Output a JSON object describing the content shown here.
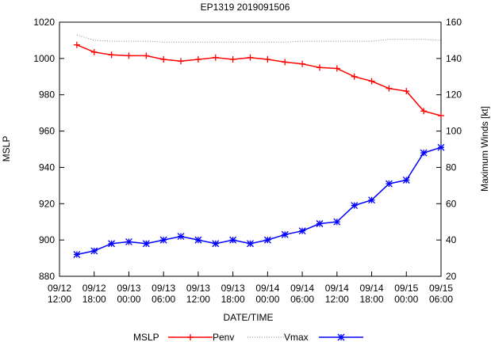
{
  "chart_data": {
    "type": "line",
    "title": "EP1319 2019091506",
    "xlabel": "DATE/TIME",
    "ylabel": "MSLP",
    "y2label": "Maximum Winds [kt]",
    "x_ticks": [
      [
        "09/12",
        "12:00"
      ],
      [
        "09/12",
        "18:00"
      ],
      [
        "09/13",
        "00:00"
      ],
      [
        "09/13",
        "06:00"
      ],
      [
        "09/13",
        "12:00"
      ],
      [
        "09/13",
        "18:00"
      ],
      [
        "09/14",
        "00:00"
      ],
      [
        "09/14",
        "06:00"
      ],
      [
        "09/14",
        "12:00"
      ],
      [
        "09/14",
        "18:00"
      ],
      [
        "09/15",
        "00:00"
      ],
      [
        "09/15",
        "06:00"
      ]
    ],
    "x_range_hours": [
      0,
      66
    ],
    "ylim": [
      880,
      1020
    ],
    "yticks": [
      880,
      900,
      920,
      940,
      960,
      980,
      1000,
      1020
    ],
    "y2lim": [
      20,
      160
    ],
    "y2ticks": [
      20,
      40,
      60,
      80,
      100,
      120,
      140,
      160
    ],
    "grid": false,
    "legend_position": "bottom",
    "series": [
      {
        "name": "MSLP",
        "axis": "left",
        "color": "#ff0000",
        "marker": "plus",
        "x_hours": [
          3,
          6,
          9,
          12,
          15,
          18,
          21,
          24,
          27,
          30,
          33,
          36,
          39,
          42,
          45,
          48,
          51,
          54,
          57,
          60,
          63,
          66
        ],
        "values": [
          1007.5,
          1003.5,
          1002,
          1001.5,
          1001.5,
          999.5,
          998.5,
          999.5,
          1000.5,
          999.5,
          1000.5,
          999.5,
          998,
          997,
          995,
          994.5,
          990,
          987.5,
          983.5,
          982,
          971,
          968.5
        ]
      },
      {
        "name": "Penv",
        "axis": "left",
        "color": "#888888",
        "marker": "none",
        "style": "dotted",
        "x_hours": [
          3,
          6,
          9,
          12,
          15,
          18,
          21,
          24,
          27,
          30,
          33,
          36,
          39,
          42,
          45,
          48,
          51,
          54,
          57,
          60,
          63,
          66
        ],
        "values": [
          1013,
          1010,
          1009.5,
          1009.5,
          1009.5,
          1009,
          1009,
          1009,
          1009,
          1009,
          1009,
          1009,
          1009,
          1009.5,
          1009.5,
          1009.5,
          1009.5,
          1009.5,
          1010.5,
          1010.5,
          1010.5,
          1010
        ]
      },
      {
        "name": "Vmax",
        "axis": "right",
        "color": "#0000ff",
        "marker": "asterisk",
        "x_hours": [
          3,
          6,
          9,
          12,
          15,
          18,
          21,
          24,
          27,
          30,
          33,
          36,
          39,
          42,
          45,
          48,
          51,
          54,
          57,
          60,
          63,
          66
        ],
        "values": [
          32,
          34,
          38,
          39,
          38,
          40,
          42,
          40,
          38,
          40,
          38,
          40,
          43,
          45,
          49,
          50,
          59,
          62,
          71,
          73,
          88,
          91
        ]
      }
    ]
  }
}
